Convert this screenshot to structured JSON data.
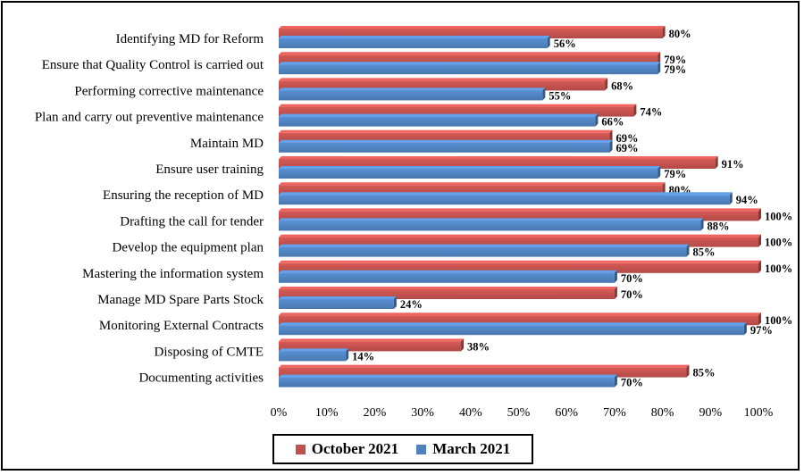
{
  "chart_data": {
    "type": "bar",
    "orientation": "horizontal",
    "categories": [
      "Identifying MD for Reform",
      "Ensure that Quality Control is carried out",
      "Performing corrective maintenance",
      "Plan and carry out preventive maintenance",
      "Maintain MD",
      "Ensure user training",
      "Ensuring the reception of MD",
      "Drafting the call for tender",
      "Develop the equipment plan",
      "Mastering the information system",
      "Manage MD Spare Parts Stock",
      "Monitoring External Contracts",
      "Disposing of CMTE",
      "Documenting activities"
    ],
    "series": [
      {
        "name": "October 2021",
        "color": "#C0504D",
        "values": [
          80,
          79,
          68,
          74,
          69,
          91,
          80,
          100,
          100,
          100,
          70,
          100,
          38,
          85
        ],
        "labels": [
          "80%",
          "79%",
          "68%",
          "74%",
          "69%",
          "91%",
          "80%",
          "100%",
          "100%",
          "100%",
          "70%",
          "100%",
          "38%",
          "85%"
        ]
      },
      {
        "name": "March 2021",
        "color": "#4F81BD",
        "values": [
          56,
          79,
          55,
          66,
          69,
          79,
          94,
          88,
          85,
          70,
          24,
          97,
          14,
          70
        ],
        "labels": [
          "56%",
          "79%",
          "55%",
          "66%",
          "69%",
          "79%",
          "94%",
          "88%",
          "85%",
          "70%",
          "24%",
          "97%",
          "14%",
          "70%"
        ]
      }
    ],
    "xaxis": {
      "min": 0,
      "max": 100,
      "ticks": [
        "0%",
        "10%",
        "20%",
        "30%",
        "40%",
        "50%",
        "60%",
        "70%",
        "80%",
        "90%",
        "100%"
      ]
    },
    "grid": false,
    "legend_position": "bottom"
  }
}
